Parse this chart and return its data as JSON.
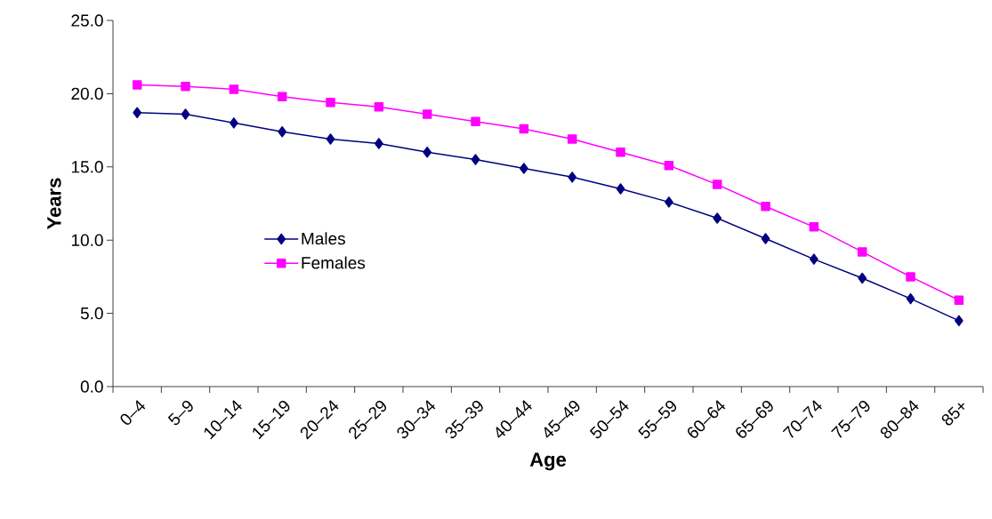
{
  "chart_data": {
    "type": "line",
    "xlabel": "Age",
    "ylabel": "Years",
    "categories": [
      "0–4",
      "5–9",
      "10–14",
      "15–19",
      "20–24",
      "25–29",
      "30–34",
      "35–39",
      "40–44",
      "45–49",
      "50–54",
      "55–59",
      "60–64",
      "65–69",
      "70–74",
      "75–79",
      "80–84",
      "85+"
    ],
    "series": [
      {
        "name": "Males",
        "color": "#000080",
        "marker": "diamond",
        "values": [
          18.7,
          18.6,
          18.0,
          17.4,
          16.9,
          16.6,
          16.0,
          15.5,
          14.9,
          14.3,
          13.5,
          12.6,
          11.5,
          10.1,
          8.7,
          7.4,
          6.0,
          4.5
        ]
      },
      {
        "name": "Females",
        "color": "#ff00ff",
        "marker": "square",
        "values": [
          20.6,
          20.5,
          20.3,
          19.8,
          19.4,
          19.1,
          18.6,
          18.1,
          17.6,
          16.9,
          16.0,
          15.1,
          13.8,
          12.3,
          10.9,
          9.2,
          7.5,
          5.9
        ]
      }
    ],
    "ylim": [
      0,
      25
    ],
    "yticks": [
      {
        "value": 0,
        "label": "0.0"
      },
      {
        "value": 5,
        "label": "5.0"
      },
      {
        "value": 10,
        "label": "10.0"
      },
      {
        "value": 15,
        "label": "15.0"
      },
      {
        "value": 20,
        "label": "20.0"
      },
      {
        "value": 25,
        "label": "25.0"
      }
    ],
    "legend": "left",
    "line_style": "solid"
  }
}
